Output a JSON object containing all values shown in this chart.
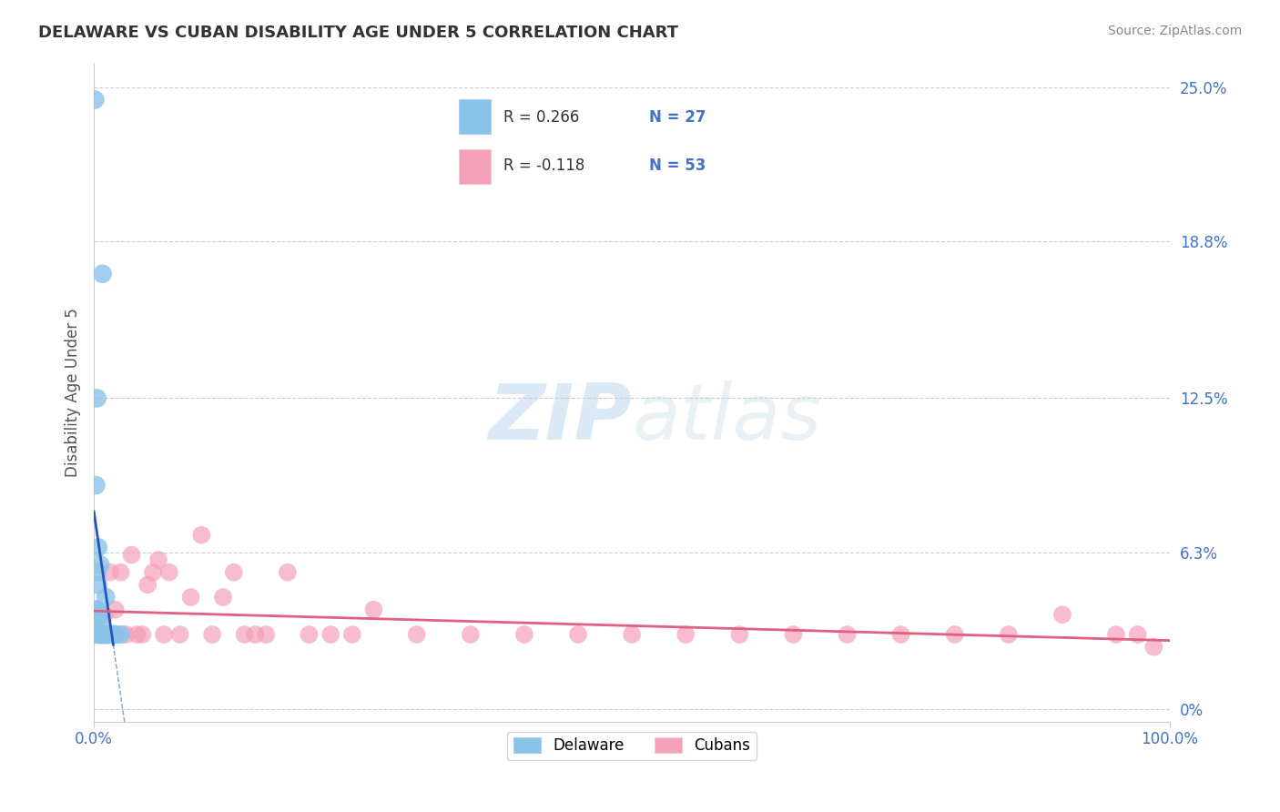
{
  "title": "DELAWARE VS CUBAN DISABILITY AGE UNDER 5 CORRELATION CHART",
  "source": "Source: ZipAtlas.com",
  "ylabel": "Disability Age Under 5",
  "xlabel": "",
  "xlim": [
    0.0,
    1.0
  ],
  "ylim": [
    -0.005,
    0.26
  ],
  "yticks": [
    0.0,
    0.063,
    0.125,
    0.188,
    0.25
  ],
  "ytick_labels": [
    "0%",
    "6.3%",
    "12.5%",
    "18.8%",
    "25.0%"
  ],
  "xticks": [
    0.0,
    1.0
  ],
  "xtick_labels": [
    "0.0%",
    "100.0%"
  ],
  "delaware_R": 0.266,
  "delaware_N": 27,
  "cuban_R": -0.118,
  "cuban_N": 53,
  "delaware_color": "#8ac4e8",
  "cuban_color": "#f4a0b8",
  "delaware_line_color": "#2255bb",
  "cuban_line_color": "#e06080",
  "background_color": "#ffffff",
  "grid_color": "#cccccc",
  "watermark_zip": "ZIP",
  "watermark_atlas": "atlas",
  "delaware_x": [
    0.001,
    0.0015,
    0.002,
    0.003,
    0.003,
    0.003,
    0.004,
    0.004,
    0.005,
    0.005,
    0.006,
    0.006,
    0.007,
    0.008,
    0.008,
    0.009,
    0.01,
    0.011,
    0.012,
    0.013,
    0.015,
    0.016,
    0.018,
    0.02,
    0.025,
    0.002,
    0.004
  ],
  "delaware_y": [
    0.245,
    0.04,
    0.035,
    0.125,
    0.055,
    0.04,
    0.03,
    0.05,
    0.038,
    0.03,
    0.058,
    0.035,
    0.03,
    0.03,
    0.175,
    0.03,
    0.03,
    0.045,
    0.03,
    0.03,
    0.03,
    0.03,
    0.03,
    0.03,
    0.03,
    0.09,
    0.065
  ],
  "cuban_x": [
    0.001,
    0.002,
    0.003,
    0.004,
    0.005,
    0.006,
    0.007,
    0.008,
    0.01,
    0.012,
    0.015,
    0.018,
    0.02,
    0.025,
    0.03,
    0.035,
    0.04,
    0.045,
    0.05,
    0.055,
    0.06,
    0.065,
    0.07,
    0.08,
    0.09,
    0.1,
    0.11,
    0.12,
    0.13,
    0.14,
    0.15,
    0.16,
    0.18,
    0.2,
    0.22,
    0.24,
    0.26,
    0.3,
    0.35,
    0.4,
    0.45,
    0.5,
    0.55,
    0.6,
    0.65,
    0.7,
    0.75,
    0.8,
    0.85,
    0.9,
    0.95,
    0.97,
    0.985
  ],
  "cuban_y": [
    0.03,
    0.038,
    0.03,
    0.03,
    0.03,
    0.03,
    0.03,
    0.03,
    0.038,
    0.03,
    0.055,
    0.03,
    0.04,
    0.055,
    0.03,
    0.062,
    0.03,
    0.03,
    0.05,
    0.055,
    0.06,
    0.03,
    0.055,
    0.03,
    0.045,
    0.07,
    0.03,
    0.045,
    0.055,
    0.03,
    0.03,
    0.03,
    0.055,
    0.03,
    0.03,
    0.03,
    0.04,
    0.03,
    0.03,
    0.03,
    0.03,
    0.03,
    0.03,
    0.03,
    0.03,
    0.03,
    0.03,
    0.03,
    0.03,
    0.038,
    0.03,
    0.03,
    0.025
  ],
  "legend_R1": "R = 0.266",
  "legend_N1": "N = 27",
  "legend_R2": "R = -0.118",
  "legend_N2": "N = 53",
  "legend_label1": "Delaware",
  "legend_label2": "Cubans",
  "title_color": "#333333",
  "source_color": "#888888",
  "axis_label_color": "#555555",
  "tick_color_y": "#4472c4",
  "tick_color_x": "#4472c4",
  "R_text_color": "#333333",
  "N_text_color": "#4472c4"
}
